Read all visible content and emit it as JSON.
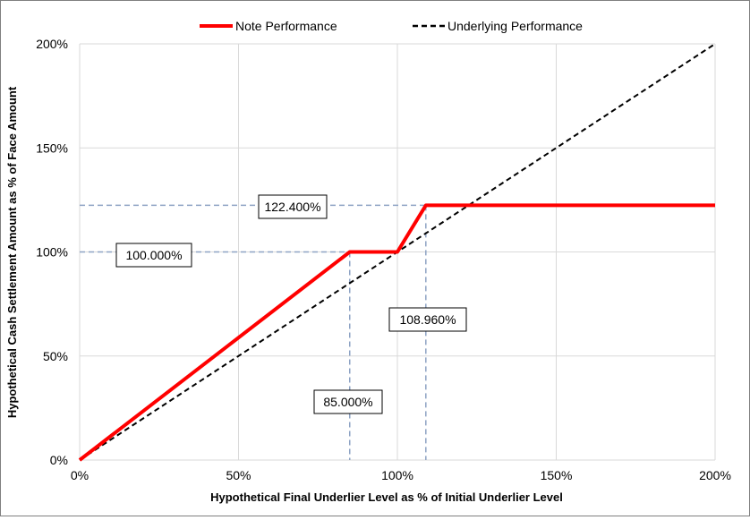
{
  "chart_data": {
    "type": "line",
    "xlabel": "Hypothetical Final Underlier Level as % of Initial Underlier Level",
    "ylabel": "Hypothetical Cash Settlement Amount as % of Face Amount",
    "xlim": [
      0,
      200
    ],
    "ylim": [
      0,
      200
    ],
    "x_ticks": [
      0,
      50,
      100,
      150,
      200
    ],
    "y_ticks": [
      0,
      50,
      100,
      150,
      200
    ],
    "x_tick_labels": [
      "0%",
      "50%",
      "100%",
      "150%",
      "200%"
    ],
    "y_tick_labels": [
      "0%",
      "50%",
      "100%",
      "150%",
      "200%"
    ],
    "grid": true,
    "legend_position": "top",
    "series": [
      {
        "name": "Note Performance",
        "color": "#ff0000",
        "style": "solid",
        "points": [
          [
            0,
            0
          ],
          [
            85,
            100
          ],
          [
            100,
            100
          ],
          [
            108.96,
            122.4
          ],
          [
            200,
            122.4
          ]
        ]
      },
      {
        "name": "Underlying Performance",
        "color": "#000000",
        "style": "dashed",
        "points": [
          [
            0,
            0
          ],
          [
            200,
            200
          ]
        ]
      }
    ],
    "reference_color": "#8ea3c4",
    "annotations": [
      {
        "text": "122.400%",
        "x": 108.96,
        "y": 122.4,
        "kind": "horizontal"
      },
      {
        "text": "100.000%",
        "x": 85,
        "y": 100,
        "kind": "horizontal"
      },
      {
        "text": "108.960%",
        "x": 108.96,
        "y": 122.4,
        "kind": "vertical"
      },
      {
        "text": "85.000%",
        "x": 85,
        "y": 100,
        "kind": "vertical"
      }
    ]
  }
}
